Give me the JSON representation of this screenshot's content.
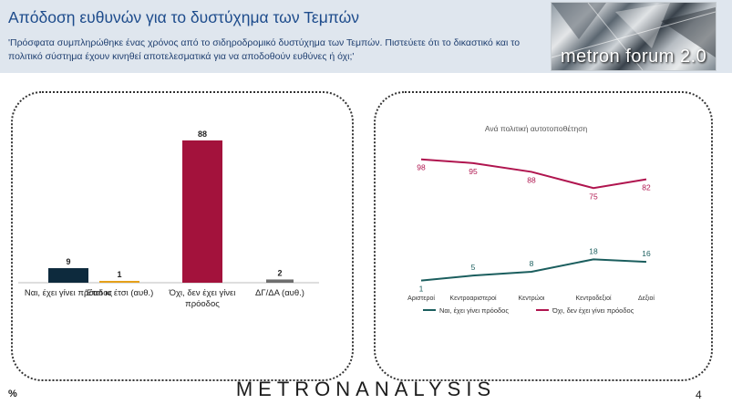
{
  "header": {
    "title": "Απόδοση ευθυνών για το δυστύχημα των Τεμπών",
    "subtitle": "'Πρόσφατα συμπληρώθηκε ένας χρόνος από το σιδηροδρομικό δυστύχημα των Τεμπών. Πιστεύετε ότι το δικαστικό και το πολιτικό σύστημα έχουν κινηθεί αποτελεσματικά για να αποδοθούν ευθύνες ή όχι;'",
    "logo_text": "metron forum 2.0"
  },
  "chart_data": [
    {
      "type": "bar",
      "categories": [
        "Ναι, έχει γίνει πρόοδος",
        "Έτσι κι έτσι (αυθ.)",
        "Όχι, δεν έχει γίνει πρόοδος",
        "ΔΓ/ΔΑ (αυθ.)"
      ],
      "values": [
        9,
        1,
        88,
        2
      ],
      "colors": [
        "#0d2a3d",
        "#e5a11a",
        "#a3123c",
        "#6e6e6e"
      ],
      "ylim": [
        0,
        100
      ]
    },
    {
      "type": "line",
      "title": "Ανά πολιτική αυτοτοποθέτηση",
      "categories": [
        "Αριστεροί",
        "Κεντροαριστεροί",
        "Κεντρώοι",
        "Κεντροδεξιοί",
        "Δεξιοί"
      ],
      "series": [
        {
          "name": "Ναι, έχει γίνει πρόοδος",
          "values": [
            1,
            5,
            8,
            18,
            16
          ],
          "color": "#1b5e5e"
        },
        {
          "name": "Όχι, δεν έχει γίνει πρόοδος",
          "values": [
            98,
            95,
            88,
            75,
            82
          ],
          "color": "#b0154f"
        }
      ],
      "ylim": [
        0,
        100
      ],
      "legend": "bottom"
    }
  ],
  "footer": {
    "percent_sign": "%",
    "brand": "METRONANALYSIS",
    "page_number": "4"
  }
}
